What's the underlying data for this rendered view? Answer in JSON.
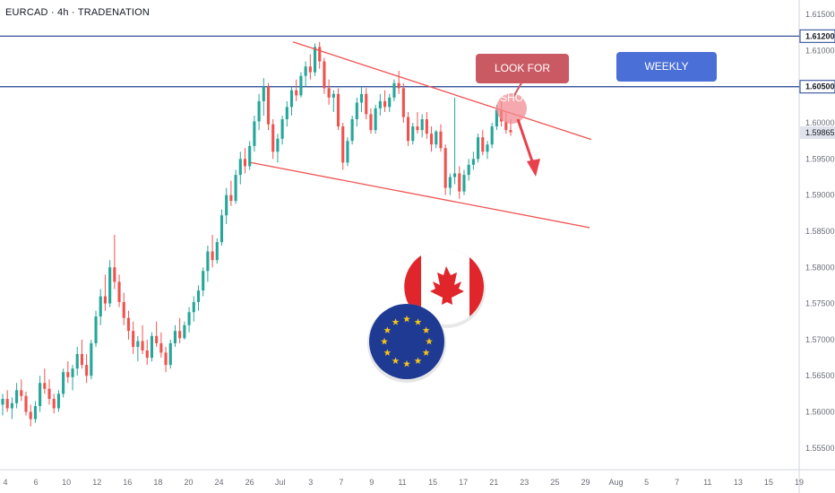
{
  "header": {
    "title": "EURCAD · 4h · TRADENATION"
  },
  "annotations": {
    "look_for_shorts": "LOOK FOR SHORTS",
    "weekly_resistance": "WEEKLY RESISTANCE"
  },
  "colors": {
    "up": "#26a69a",
    "down": "#ef5350",
    "level_line": "#1f3f8f",
    "trendline": "#ef5350",
    "label_shorts": "#c95a63",
    "label_weekly": "#4a6fd6",
    "price_label": "#e0e3eb"
  },
  "chart_data": {
    "type": "candlestick",
    "symbol": "EURCAD",
    "timeframe": "4h",
    "ylim": [
      1.552,
      1.617
    ],
    "y_ticks": [
      "1.61500",
      "1.61000",
      "1.60000",
      "1.59500",
      "1.59000",
      "1.58500",
      "1.58000",
      "1.57500",
      "1.57000",
      "1.56500",
      "1.56000",
      "1.55500"
    ],
    "x_ticks": [
      "4",
      "6",
      "10",
      "12",
      "16",
      "18",
      "20",
      "24",
      "26",
      "Jul",
      "3",
      "7",
      "9",
      "11",
      "15",
      "17",
      "21",
      "23",
      "25",
      "29",
      "Aug",
      "5",
      "7",
      "11",
      "13",
      "15",
      "19"
    ],
    "price_labels": [
      {
        "value": 1.612,
        "text": "1.61200"
      },
      {
        "value": 1.605,
        "text": "1.60500"
      },
      {
        "value": 1.59865,
        "text": "1.59865"
      }
    ],
    "horizontal_levels": [
      1.612,
      1.605
    ],
    "trendlines": [
      {
        "name": "upper",
        "from": [
          1.6112
        ],
        "to": [
          1.5977
        ]
      },
      {
        "name": "lower",
        "from": [
          1.5945
        ],
        "to": [
          1.5855
        ]
      }
    ],
    "candles": [
      [
        1.561,
        1.5625,
        1.5595,
        1.5618
      ],
      [
        1.5618,
        1.563,
        1.56,
        1.5605
      ],
      [
        1.5605,
        1.562,
        1.559,
        1.5612
      ],
      [
        1.5612,
        1.564,
        1.5605,
        1.563
      ],
      [
        1.563,
        1.5645,
        1.5615,
        1.5622
      ],
      [
        1.5622,
        1.5628,
        1.5595,
        1.56
      ],
      [
        1.56,
        1.561,
        1.558,
        1.559
      ],
      [
        1.559,
        1.5615,
        1.5585,
        1.5608
      ],
      [
        1.5608,
        1.565,
        1.56,
        1.564
      ],
      [
        1.564,
        1.566,
        1.5625,
        1.5632
      ],
      [
        1.5632,
        1.5645,
        1.561,
        1.5618
      ],
      [
        1.5618,
        1.5625,
        1.5598,
        1.5605
      ],
      [
        1.5605,
        1.563,
        1.56,
        1.5625
      ],
      [
        1.5625,
        1.566,
        1.562,
        1.5655
      ],
      [
        1.5655,
        1.567,
        1.564,
        1.5648
      ],
      [
        1.5648,
        1.5665,
        1.563,
        1.566
      ],
      [
        1.566,
        1.569,
        1.565,
        1.568
      ],
      [
        1.568,
        1.57,
        1.566,
        1.5665
      ],
      [
        1.5665,
        1.568,
        1.564,
        1.565
      ],
      [
        1.565,
        1.57,
        1.5645,
        1.5695
      ],
      [
        1.5695,
        1.574,
        1.569,
        1.5732
      ],
      [
        1.5732,
        1.577,
        1.572,
        1.576
      ],
      [
        1.576,
        1.579,
        1.574,
        1.575
      ],
      [
        1.575,
        1.581,
        1.5745,
        1.58
      ],
      [
        1.58,
        1.5845,
        1.577,
        1.578
      ],
      [
        1.578,
        1.579,
        1.5745,
        1.5752
      ],
      [
        1.5752,
        1.5765,
        1.572,
        1.573
      ],
      [
        1.573,
        1.574,
        1.57,
        1.5712
      ],
      [
        1.5712,
        1.5725,
        1.568,
        1.569
      ],
      [
        1.569,
        1.5705,
        1.567,
        1.5698
      ],
      [
        1.5698,
        1.572,
        1.568,
        1.5685
      ],
      [
        1.5685,
        1.57,
        1.5665,
        1.5675
      ],
      [
        1.5675,
        1.571,
        1.567,
        1.5705
      ],
      [
        1.5705,
        1.5725,
        1.569,
        1.5695
      ],
      [
        1.5695,
        1.571,
        1.5675,
        1.5682
      ],
      [
        1.5682,
        1.569,
        1.5655,
        1.5665
      ],
      [
        1.5665,
        1.57,
        1.566,
        1.5695
      ],
      [
        1.5695,
        1.572,
        1.569,
        1.5712
      ],
      [
        1.5712,
        1.573,
        1.5695,
        1.5702
      ],
      [
        1.5702,
        1.5725,
        1.57,
        1.572
      ],
      [
        1.572,
        1.5745,
        1.571,
        1.5738
      ],
      [
        1.5738,
        1.576,
        1.5725,
        1.5752
      ],
      [
        1.5752,
        1.5775,
        1.574,
        1.5768
      ],
      [
        1.5768,
        1.58,
        1.576,
        1.5795
      ],
      [
        1.5795,
        1.583,
        1.578,
        1.5822
      ],
      [
        1.5822,
        1.5845,
        1.58,
        1.581
      ],
      [
        1.581,
        1.584,
        1.5805,
        1.5835
      ],
      [
        1.5835,
        1.588,
        1.583,
        1.5872
      ],
      [
        1.5872,
        1.591,
        1.586,
        1.59
      ],
      [
        1.59,
        1.592,
        1.5885,
        1.5892
      ],
      [
        1.5892,
        1.5935,
        1.5888,
        1.5928
      ],
      [
        1.5928,
        1.596,
        1.5915,
        1.595
      ],
      [
        1.595,
        1.5965,
        1.593,
        1.594
      ],
      [
        1.594,
        1.5975,
        1.5935,
        1.5968
      ],
      [
        1.5968,
        1.601,
        1.596,
        1.6002
      ],
      [
        1.6002,
        1.604,
        1.599,
        1.603
      ],
      [
        1.603,
        1.6062,
        1.601,
        1.605
      ],
      [
        1.605,
        1.6055,
        1.599,
        1.5998
      ],
      [
        1.5998,
        1.6005,
        1.595,
        1.596
      ],
      [
        1.596,
        1.5985,
        1.5945,
        1.5978
      ],
      [
        1.5978,
        1.601,
        1.597,
        1.6005
      ],
      [
        1.6005,
        1.603,
        1.5995,
        1.6022
      ],
      [
        1.6022,
        1.605,
        1.601,
        1.6045
      ],
      [
        1.6045,
        1.606,
        1.603,
        1.6038
      ],
      [
        1.6038,
        1.607,
        1.6035,
        1.6065
      ],
      [
        1.6065,
        1.6085,
        1.605,
        1.6078
      ],
      [
        1.6078,
        1.6095,
        1.606,
        1.607
      ],
      [
        1.607,
        1.611,
        1.6065,
        1.6105
      ],
      [
        1.6105,
        1.6112,
        1.6075,
        1.6085
      ],
      [
        1.6085,
        1.609,
        1.604,
        1.6048
      ],
      [
        1.6048,
        1.606,
        1.6025,
        1.6035
      ],
      [
        1.6035,
        1.6045,
        1.6015,
        1.604
      ],
      [
        1.604,
        1.6048,
        1.599,
        1.5995
      ],
      [
        1.5995,
        1.6,
        1.5935,
        1.5945
      ],
      [
        1.5945,
        1.598,
        1.594,
        1.5975
      ],
      [
        1.5975,
        1.601,
        1.597,
        1.6005
      ],
      [
        1.6005,
        1.6035,
        1.5995,
        1.6028
      ],
      [
        1.6028,
        1.605,
        1.6015,
        1.604
      ],
      [
        1.604,
        1.6048,
        1.6005,
        1.6012
      ],
      [
        1.6012,
        1.602,
        1.5985,
        1.599
      ],
      [
        1.599,
        1.6025,
        1.5985,
        1.602
      ],
      [
        1.602,
        1.604,
        1.601,
        1.603
      ],
      [
        1.603,
        1.6045,
        1.6015,
        1.6022
      ],
      [
        1.6022,
        1.604,
        1.6015,
        1.6035
      ],
      [
        1.6035,
        1.606,
        1.603,
        1.6055
      ],
      [
        1.6055,
        1.6072,
        1.604,
        1.6048
      ],
      [
        1.6048,
        1.6055,
        1.6,
        1.6008
      ],
      [
        1.6008,
        1.6015,
        1.5968,
        1.5975
      ],
      [
        1.5975,
        1.6,
        1.597,
        1.5995
      ],
      [
        1.5995,
        1.6015,
        1.5985,
        1.599
      ],
      [
        1.599,
        1.6012,
        1.598,
        1.6005
      ],
      [
        1.6005,
        1.6015,
        1.5978,
        1.5985
      ],
      [
        1.5985,
        1.5995,
        1.596,
        1.597
      ],
      [
        1.597,
        1.599,
        1.5965,
        1.5988
      ],
      [
        1.5988,
        1.5998,
        1.596,
        1.5965
      ],
      [
        1.5965,
        1.597,
        1.59,
        1.591
      ],
      [
        1.591,
        1.593,
        1.59,
        1.5925
      ],
      [
        1.5925,
        1.6035,
        1.5915,
        1.593
      ],
      [
        1.593,
        1.594,
        1.5895,
        1.5905
      ],
      [
        1.5905,
        1.5935,
        1.59,
        1.5928
      ],
      [
        1.5928,
        1.595,
        1.592,
        1.5942
      ],
      [
        1.5942,
        1.596,
        1.5935,
        1.595
      ],
      [
        1.595,
        1.5985,
        1.5945,
        1.598
      ],
      [
        1.598,
        1.599,
        1.5955,
        1.596
      ],
      [
        1.596,
        1.5975,
        1.595,
        1.597
      ],
      [
        1.597,
        1.6,
        1.5965,
        1.5995
      ],
      [
        1.5995,
        1.6025,
        1.599,
        1.6018
      ],
      [
        1.6018,
        1.603,
        1.5995,
        1.6002
      ],
      [
        1.6002,
        1.6015,
        1.5985,
        1.599
      ],
      [
        1.599,
        1.6005,
        1.5982,
        1.5987
      ]
    ]
  }
}
